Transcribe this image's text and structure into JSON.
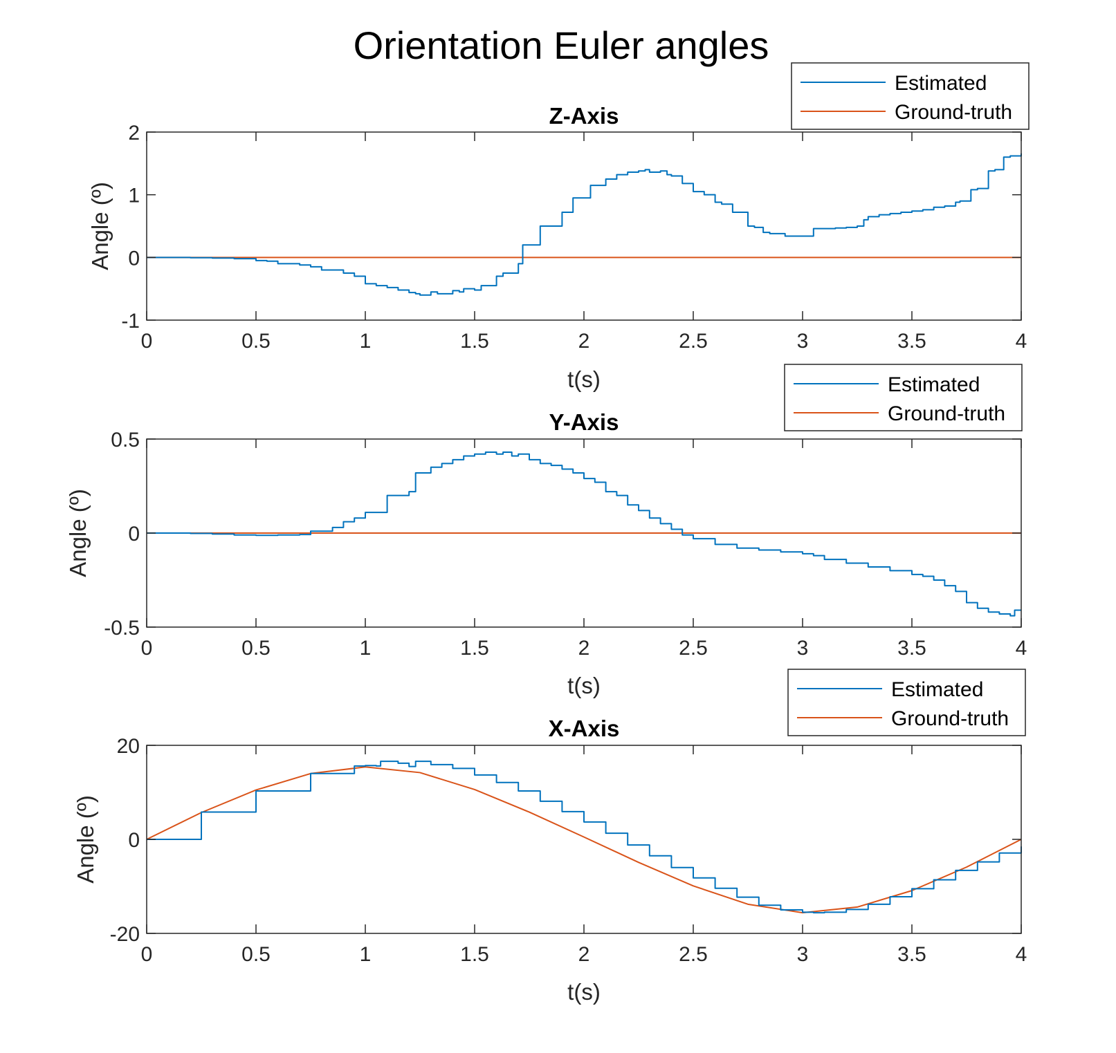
{
  "figure": {
    "title": "Orientation Euler angles"
  },
  "colors": {
    "estimated": "#0072BD",
    "ground_truth": "#D95319",
    "axes": "#262626"
  },
  "chart_data": [
    {
      "type": "line",
      "title": "Z-Axis",
      "xlabel": "t(s)",
      "ylabel": "Angle (º)",
      "xlim": [
        0,
        4
      ],
      "ylim": [
        -1,
        2
      ],
      "xticks": [
        0,
        0.5,
        1,
        1.5,
        2,
        2.5,
        3,
        3.5,
        4
      ],
      "xtick_labels": [
        "0",
        "0.5",
        "1",
        "1.5",
        "2",
        "2.5",
        "3",
        "3.5",
        "4"
      ],
      "yticks": [
        -1,
        0,
        1,
        2
      ],
      "ytick_labels": [
        "-1",
        "0",
        "1",
        "2"
      ],
      "grid": false,
      "legend": "top-right, outside",
      "series": [
        {
          "name": "Estimated",
          "color": "#0072BD",
          "step": true,
          "x": [
            0,
            0.1,
            0.2,
            0.3,
            0.4,
            0.5,
            0.55,
            0.6,
            0.7,
            0.75,
            0.8,
            0.9,
            0.95,
            1.0,
            1.05,
            1.1,
            1.15,
            1.2,
            1.23,
            1.25,
            1.3,
            1.33,
            1.4,
            1.43,
            1.45,
            1.5,
            1.53,
            1.6,
            1.63,
            1.7,
            1.72,
            1.75,
            1.8,
            1.85,
            1.9,
            1.93,
            1.95,
            2.0,
            2.03,
            2.05,
            2.1,
            2.13,
            2.15,
            2.2,
            2.25,
            2.28,
            2.3,
            2.35,
            2.38,
            2.4,
            2.45,
            2.48,
            2.5,
            2.55,
            2.6,
            2.63,
            2.68,
            2.7,
            2.75,
            2.78,
            2.82,
            2.85,
            2.88,
            2.92,
            2.95,
            3.05,
            3.1,
            3.15,
            3.2,
            3.25,
            3.28,
            3.3,
            3.35,
            3.4,
            3.45,
            3.5,
            3.55,
            3.6,
            3.65,
            3.7,
            3.72,
            3.77,
            3.8,
            3.85,
            3.88,
            3.92,
            3.95,
            4.0
          ],
          "y": [
            0,
            0,
            -0.005,
            -0.01,
            -0.02,
            -0.05,
            -0.06,
            -0.1,
            -0.12,
            -0.15,
            -0.2,
            -0.25,
            -0.3,
            -0.42,
            -0.45,
            -0.48,
            -0.52,
            -0.56,
            -0.58,
            -0.6,
            -0.55,
            -0.58,
            -0.53,
            -0.55,
            -0.5,
            -0.52,
            -0.45,
            -0.3,
            -0.25,
            -0.1,
            0.2,
            0.2,
            0.5,
            0.5,
            0.72,
            0.72,
            0.95,
            0.95,
            1.15,
            1.15,
            1.25,
            1.25,
            1.32,
            1.36,
            1.38,
            1.4,
            1.36,
            1.38,
            1.32,
            1.3,
            1.18,
            1.18,
            1.05,
            1.0,
            0.88,
            0.85,
            0.72,
            0.72,
            0.5,
            0.48,
            0.4,
            0.38,
            0.38,
            0.34,
            0.34,
            0.46,
            0.46,
            0.47,
            0.48,
            0.5,
            0.6,
            0.65,
            0.68,
            0.7,
            0.72,
            0.74,
            0.76,
            0.8,
            0.82,
            0.88,
            0.9,
            1.08,
            1.1,
            1.38,
            1.4,
            1.6,
            1.62,
            1.66
          ]
        },
        {
          "name": "Ground-truth",
          "color": "#D95319",
          "x": [
            0,
            4
          ],
          "y": [
            0,
            0
          ]
        }
      ]
    },
    {
      "type": "line",
      "title": "Y-Axis",
      "xlabel": "t(s)",
      "ylabel": "Angle (º)",
      "xlim": [
        0,
        4
      ],
      "ylim": [
        -0.5,
        0.5
      ],
      "xticks": [
        0,
        0.5,
        1,
        1.5,
        2,
        2.5,
        3,
        3.5,
        4
      ],
      "xtick_labels": [
        "0",
        "0.5",
        "1",
        "1.5",
        "2",
        "2.5",
        "3",
        "3.5",
        "4"
      ],
      "yticks": [
        -0.5,
        0,
        0.5
      ],
      "ytick_labels": [
        "-0.5",
        "0",
        "0.5"
      ],
      "grid": false,
      "legend": "top-right, outside",
      "series": [
        {
          "name": "Estimated",
          "color": "#0072BD",
          "step": true,
          "x": [
            0,
            0.1,
            0.2,
            0.3,
            0.4,
            0.5,
            0.6,
            0.7,
            0.75,
            0.8,
            0.85,
            0.9,
            0.95,
            1.0,
            1.07,
            1.1,
            1.2,
            1.23,
            1.3,
            1.35,
            1.4,
            1.45,
            1.5,
            1.55,
            1.6,
            1.63,
            1.67,
            1.7,
            1.75,
            1.8,
            1.85,
            1.9,
            1.95,
            2.0,
            2.05,
            2.1,
            2.15,
            2.2,
            2.25,
            2.3,
            2.35,
            2.4,
            2.45,
            2.5,
            2.6,
            2.7,
            2.8,
            2.9,
            3.0,
            3.05,
            3.1,
            3.2,
            3.3,
            3.4,
            3.5,
            3.55,
            3.6,
            3.65,
            3.7,
            3.75,
            3.8,
            3.85,
            3.9,
            3.95,
            3.97,
            4.0
          ],
          "y": [
            0,
            0,
            -0.002,
            -0.005,
            -0.01,
            -0.012,
            -0.01,
            -0.008,
            0.01,
            0.01,
            0.03,
            0.06,
            0.08,
            0.11,
            0.11,
            0.2,
            0.22,
            0.32,
            0.35,
            0.37,
            0.39,
            0.41,
            0.42,
            0.43,
            0.42,
            0.43,
            0.41,
            0.42,
            0.39,
            0.37,
            0.36,
            0.34,
            0.32,
            0.29,
            0.27,
            0.22,
            0.2,
            0.15,
            0.12,
            0.08,
            0.05,
            0.02,
            -0.01,
            -0.03,
            -0.06,
            -0.08,
            -0.09,
            -0.1,
            -0.11,
            -0.12,
            -0.14,
            -0.16,
            -0.18,
            -0.2,
            -0.22,
            -0.23,
            -0.25,
            -0.28,
            -0.31,
            -0.37,
            -0.4,
            -0.42,
            -0.43,
            -0.44,
            -0.41,
            -0.41
          ]
        },
        {
          "name": "Ground-truth",
          "color": "#D95319",
          "x": [
            0,
            4
          ],
          "y": [
            0,
            0
          ]
        }
      ]
    },
    {
      "type": "line",
      "title": "X-Axis",
      "xlabel": "t(s)",
      "ylabel": "Angle (º)",
      "xlim": [
        0,
        4
      ],
      "ylim": [
        -20,
        20
      ],
      "xticks": [
        0,
        0.5,
        1,
        1.5,
        2,
        2.5,
        3,
        3.5,
        4
      ],
      "xtick_labels": [
        "0",
        "0.5",
        "1",
        "1.5",
        "2",
        "2.5",
        "3",
        "3.5",
        "4"
      ],
      "yticks": [
        -20,
        0,
        20
      ],
      "ytick_labels": [
        "-20",
        "0",
        "20"
      ],
      "grid": false,
      "legend": "top-right, outside",
      "series": [
        {
          "name": "Estimated",
          "color": "#0072BD",
          "step": true,
          "x": [
            0,
            0.25,
            0.5,
            0.75,
            0.95,
            1.0,
            1.05,
            1.07,
            1.15,
            1.2,
            1.23,
            1.3,
            1.4,
            1.5,
            1.6,
            1.7,
            1.8,
            1.9,
            2.0,
            2.1,
            2.2,
            2.3,
            2.4,
            2.5,
            2.6,
            2.7,
            2.8,
            2.9,
            3.0,
            3.05,
            3.1,
            3.2,
            3.3,
            3.4,
            3.5,
            3.6,
            3.7,
            3.8,
            3.9,
            4.0
          ],
          "y": [
            0,
            5.8,
            10.3,
            14.0,
            15.6,
            15.7,
            15.6,
            16.6,
            16.2,
            15.5,
            16.6,
            15.9,
            15.1,
            13.7,
            12.1,
            10.3,
            8.1,
            5.9,
            3.7,
            1.3,
            -1.2,
            -3.5,
            -6.0,
            -8.2,
            -10.4,
            -12.3,
            -14.0,
            -15.0,
            -15.5,
            -15.6,
            -15.5,
            -14.9,
            -13.8,
            -12.2,
            -10.5,
            -8.6,
            -6.6,
            -4.8,
            -2.9,
            -1.5
          ]
        },
        {
          "name": "Ground-truth",
          "color": "#D95319",
          "x": [
            0,
            0.25,
            0.5,
            0.75,
            1.0,
            1.25,
            1.5,
            1.75,
            2.0,
            2.25,
            2.5,
            2.75,
            3.0,
            3.25,
            3.5,
            3.75,
            4.0
          ],
          "y": [
            0,
            5.7,
            10.5,
            14.0,
            15.4,
            14.2,
            10.6,
            5.8,
            0.5,
            -4.9,
            -9.9,
            -13.8,
            -15.6,
            -14.4,
            -10.9,
            -5.9,
            0
          ]
        }
      ]
    }
  ]
}
